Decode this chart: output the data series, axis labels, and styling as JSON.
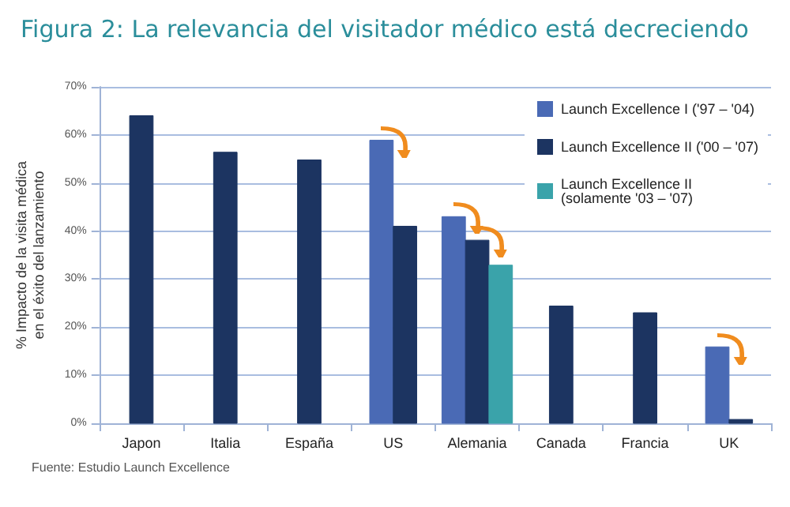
{
  "chart_data": {
    "type": "bar",
    "title": "Figura 2: La relevancia del visitador médico está decreciendo",
    "ylabel": "% Impacto de la visita médica\nen el éxito del lanzamiento",
    "categories": [
      "Japon",
      "Italia",
      "España",
      "US",
      "Alemania",
      "Canada",
      "Francia",
      "UK"
    ],
    "series": [
      {
        "name": "Launch Excellence I ('97 – '04)",
        "color": "#4a6ab5",
        "values": [
          null,
          null,
          null,
          58.9,
          43.0,
          null,
          null,
          15.9
        ]
      },
      {
        "name": "Launch Excellence II ('00 – '07)",
        "color": "#1c3461",
        "values": [
          64,
          56.4,
          54.8,
          41.0,
          38.1,
          24.4,
          23.0,
          0.8
        ]
      },
      {
        "name": "Launch Excellence II\n(solamente '03 – '07)",
        "color": "#3aa3aa",
        "values": [
          null,
          null,
          null,
          null,
          32.9,
          null,
          null,
          null
        ]
      }
    ],
    "ylim": [
      0,
      70
    ],
    "yticks": [
      {
        "value": 0,
        "label": "0%"
      },
      {
        "value": 10,
        "label": "10%"
      },
      {
        "value": 20,
        "label": "20%"
      },
      {
        "value": 30,
        "label": "30%"
      },
      {
        "value": 40,
        "label": "40%"
      },
      {
        "value": 50,
        "label": "50%"
      },
      {
        "value": 60,
        "label": "60%"
      },
      {
        "value": 70,
        "label": "70%"
      }
    ],
    "grid": "y",
    "legend": "top right",
    "annotations": [
      "Fuente: Estudio Launch Excellence"
    ]
  }
}
